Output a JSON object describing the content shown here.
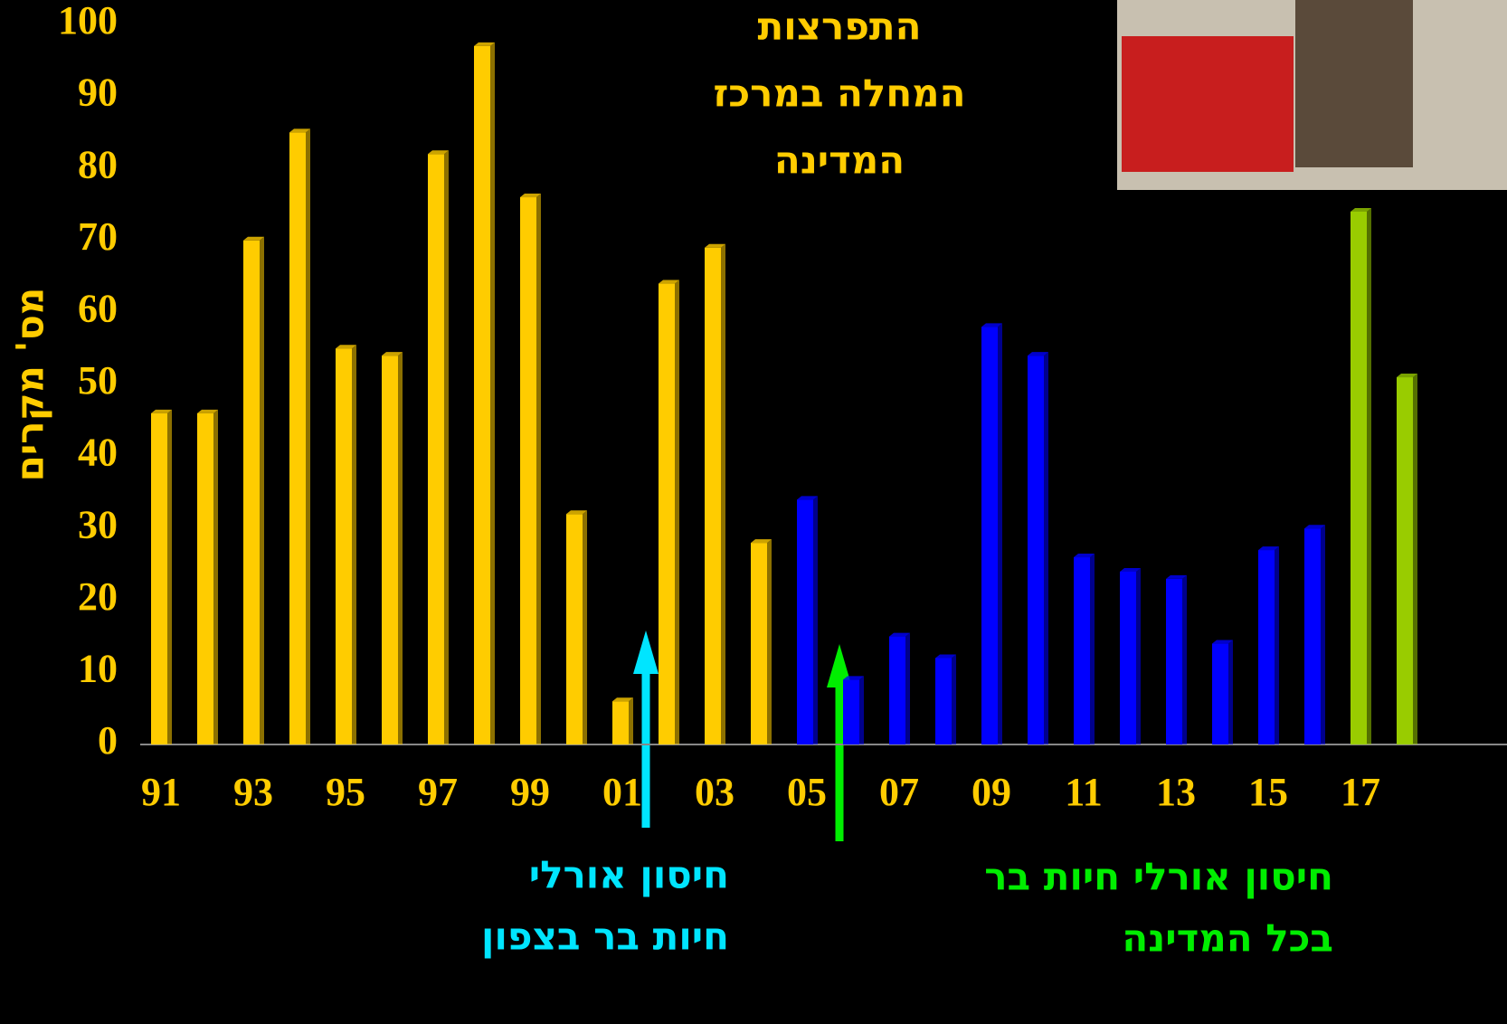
{
  "chart_data": {
    "type": "bar",
    "y_label": "מס' מקרים",
    "title_lines": [
      "התפרצות",
      "המחלה במרכז",
      "המדינה"
    ],
    "annotation_north": [
      "חיסון אורלי",
      "חיות בר בצפון"
    ],
    "annotation_all": [
      "חיסון אורלי חיות בר",
      "בכל המדינה"
    ],
    "categories": [
      "91",
      null,
      "93",
      null,
      "95",
      null,
      "97",
      null,
      "99",
      null,
      "01",
      null,
      "03",
      null,
      "05",
      null,
      "07",
      null,
      "09",
      null,
      "11",
      null,
      "13",
      null,
      "15",
      null,
      "17",
      null
    ],
    "values": [
      46,
      46,
      70,
      85,
      55,
      54,
      82,
      97,
      76,
      32,
      6,
      64,
      69,
      28,
      34,
      9,
      15,
      12,
      58,
      54,
      26,
      24,
      23,
      14,
      27,
      30,
      74,
      51
    ],
    "bar_colors": [
      "#ffcc00",
      "#ffcc00",
      "#ffcc00",
      "#ffcc00",
      "#ffcc00",
      "#ffcc00",
      "#ffcc00",
      "#ffcc00",
      "#ffcc00",
      "#ffcc00",
      "#ffcc00",
      "#ffcc00",
      "#ffcc00",
      "#ffcc00",
      "#0000ff",
      "#0000ff",
      "#0000ff",
      "#0000ff",
      "#0000ff",
      "#0000ff",
      "#0000ff",
      "#0000ff",
      "#0000ff",
      "#0000ff",
      "#0000ff",
      "#0000ff",
      "#99cc00",
      "#99cc00"
    ],
    "ylim": [
      0,
      100
    ],
    "yticks": [
      0,
      10,
      20,
      30,
      40,
      50,
      60,
      70,
      80,
      90,
      100
    ]
  }
}
